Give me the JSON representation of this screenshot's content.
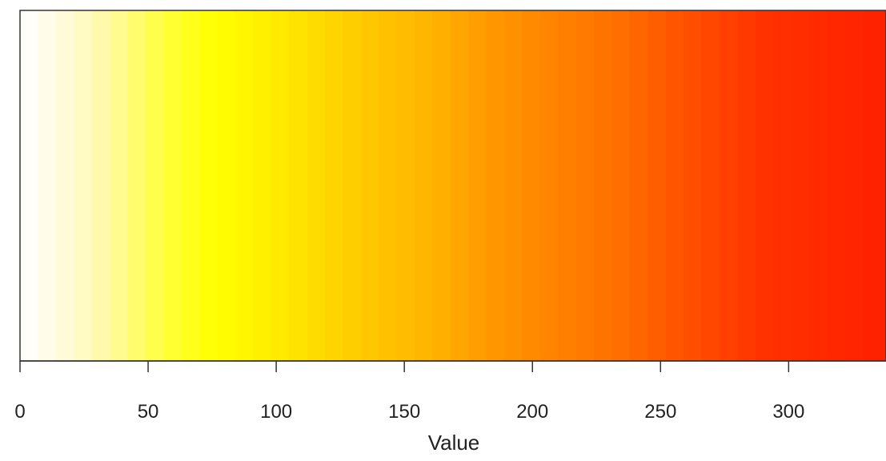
{
  "chart_data": {
    "type": "heatmap",
    "title": "",
    "xlabel": "Value",
    "ylabel": "",
    "xlim": [
      0,
      338
    ],
    "x_ticks": [
      "0",
      "50",
      "100",
      "150",
      "200",
      "250",
      "300"
    ],
    "x_tick_values": [
      0,
      50,
      100,
      150,
      200,
      250,
      300
    ],
    "grid": false,
    "legend": "none",
    "color_stops": [
      {
        "value": 0,
        "color": "#ffffff"
      },
      {
        "value": 15,
        "color": "#fffbe0"
      },
      {
        "value": 35,
        "color": "#fffaa0"
      },
      {
        "value": 55,
        "color": "#ffff40"
      },
      {
        "value": 75,
        "color": "#ffff00"
      },
      {
        "value": 95,
        "color": "#fff000"
      },
      {
        "value": 115,
        "color": "#ffdc00"
      },
      {
        "value": 135,
        "color": "#ffc800"
      },
      {
        "value": 160,
        "color": "#ffb400"
      },
      {
        "value": 185,
        "color": "#ff9600"
      },
      {
        "value": 210,
        "color": "#ff8200"
      },
      {
        "value": 235,
        "color": "#ff6e00"
      },
      {
        "value": 260,
        "color": "#ff5000"
      },
      {
        "value": 290,
        "color": "#ff3200"
      },
      {
        "value": 338,
        "color": "#ff2000"
      }
    ]
  }
}
